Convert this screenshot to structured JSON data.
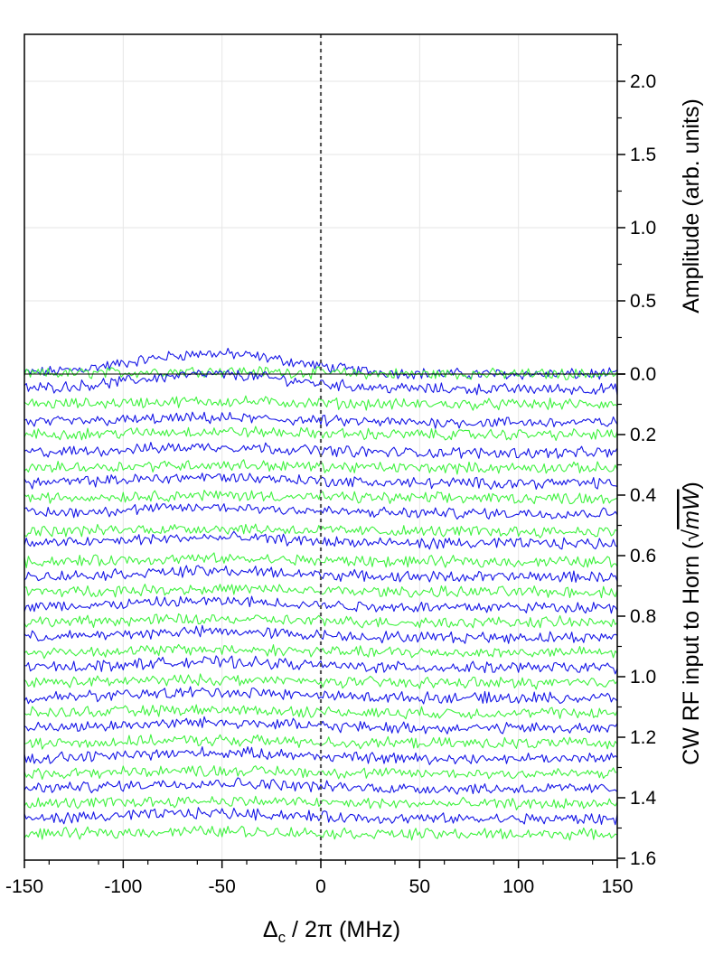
{
  "chart_data": {
    "type": "line",
    "title": "",
    "xlabel": "Δc / 2π (MHz)",
    "xlabel_parts": {
      "symbol": "Δ",
      "subscript": "c",
      "rest": " / 2π (MHz)"
    },
    "ylabel_right_upper": "Amplitude (arb. units)",
    "ylabel_right_lower": "CW RF input to Horn (√mW)",
    "ylabel_right_lower_parts": {
      "text": "CW RF input to Horn (",
      "radical": "√",
      "radicand": "mW",
      "close": ")"
    },
    "xlim": [
      -150,
      150
    ],
    "x_ticks": [
      "-150",
      "-100",
      "-50",
      "0",
      "50",
      "100",
      "150"
    ],
    "amplitude_axis": {
      "range": [
        0,
        2.4
      ],
      "ticks": [
        "0.0",
        "0.5",
        "1.0",
        "1.5",
        "2.0"
      ]
    },
    "rf_axis": {
      "range": [
        0,
        1.6
      ],
      "ticks": [
        "0.0",
        "0.2",
        "0.4",
        "0.6",
        "0.8",
        "1.0",
        "1.2",
        "1.4",
        "1.6"
      ]
    },
    "grid": true,
    "legend": "none",
    "reference_line": {
      "x": 0,
      "style": "dotted",
      "color": "#555555"
    },
    "colors": {
      "blue": "#1515e6",
      "green": "#3ef23e",
      "axis": "#000000",
      "grid": "#e6e6e6"
    },
    "series_description_note_free": true,
    "peak_center_mhz": -55,
    "peak_width_mhz": 40,
    "traces": [
      {
        "offset": 0.0,
        "color": "blue",
        "peak": 0.14
      },
      {
        "offset": 0.0,
        "color": "green",
        "peak": 0.02
      },
      {
        "offset": 0.05,
        "color": "blue",
        "peak": 0.1
      },
      {
        "offset": 0.1,
        "color": "green",
        "peak": 0.02
      },
      {
        "offset": 0.16,
        "color": "blue",
        "peak": 0.03
      },
      {
        "offset": 0.2,
        "color": "green",
        "peak": 0.02
      },
      {
        "offset": 0.26,
        "color": "blue",
        "peak": 0.04
      },
      {
        "offset": 0.31,
        "color": "green",
        "peak": 0.02
      },
      {
        "offset": 0.36,
        "color": "blue",
        "peak": 0.04
      },
      {
        "offset": 0.41,
        "color": "green",
        "peak": 0.02
      },
      {
        "offset": 0.46,
        "color": "blue",
        "peak": 0.04
      },
      {
        "offset": 0.52,
        "color": "green",
        "peak": 0.02
      },
      {
        "offset": 0.56,
        "color": "blue",
        "peak": 0.04
      },
      {
        "offset": 0.62,
        "color": "green",
        "peak": 0.02
      },
      {
        "offset": 0.67,
        "color": "blue",
        "peak": 0.04
      },
      {
        "offset": 0.72,
        "color": "green",
        "peak": 0.02
      },
      {
        "offset": 0.77,
        "color": "blue",
        "peak": 0.04
      },
      {
        "offset": 0.82,
        "color": "green",
        "peak": 0.02
      },
      {
        "offset": 0.87,
        "color": "blue",
        "peak": 0.04
      },
      {
        "offset": 0.92,
        "color": "green",
        "peak": 0.02
      },
      {
        "offset": 0.97,
        "color": "blue",
        "peak": 0.04
      },
      {
        "offset": 1.02,
        "color": "green",
        "peak": 0.02
      },
      {
        "offset": 1.07,
        "color": "blue",
        "peak": 0.04
      },
      {
        "offset": 1.12,
        "color": "green",
        "peak": 0.02
      },
      {
        "offset": 1.17,
        "color": "blue",
        "peak": 0.04
      },
      {
        "offset": 1.22,
        "color": "green",
        "peak": 0.02
      },
      {
        "offset": 1.27,
        "color": "blue",
        "peak": 0.04
      },
      {
        "offset": 1.32,
        "color": "green",
        "peak": 0.02
      },
      {
        "offset": 1.37,
        "color": "blue",
        "peak": 0.04
      },
      {
        "offset": 1.42,
        "color": "green",
        "peak": 0.02
      },
      {
        "offset": 1.47,
        "color": "blue",
        "peak": 0.04
      },
      {
        "offset": 1.52,
        "color": "green",
        "peak": 0.02
      }
    ]
  }
}
